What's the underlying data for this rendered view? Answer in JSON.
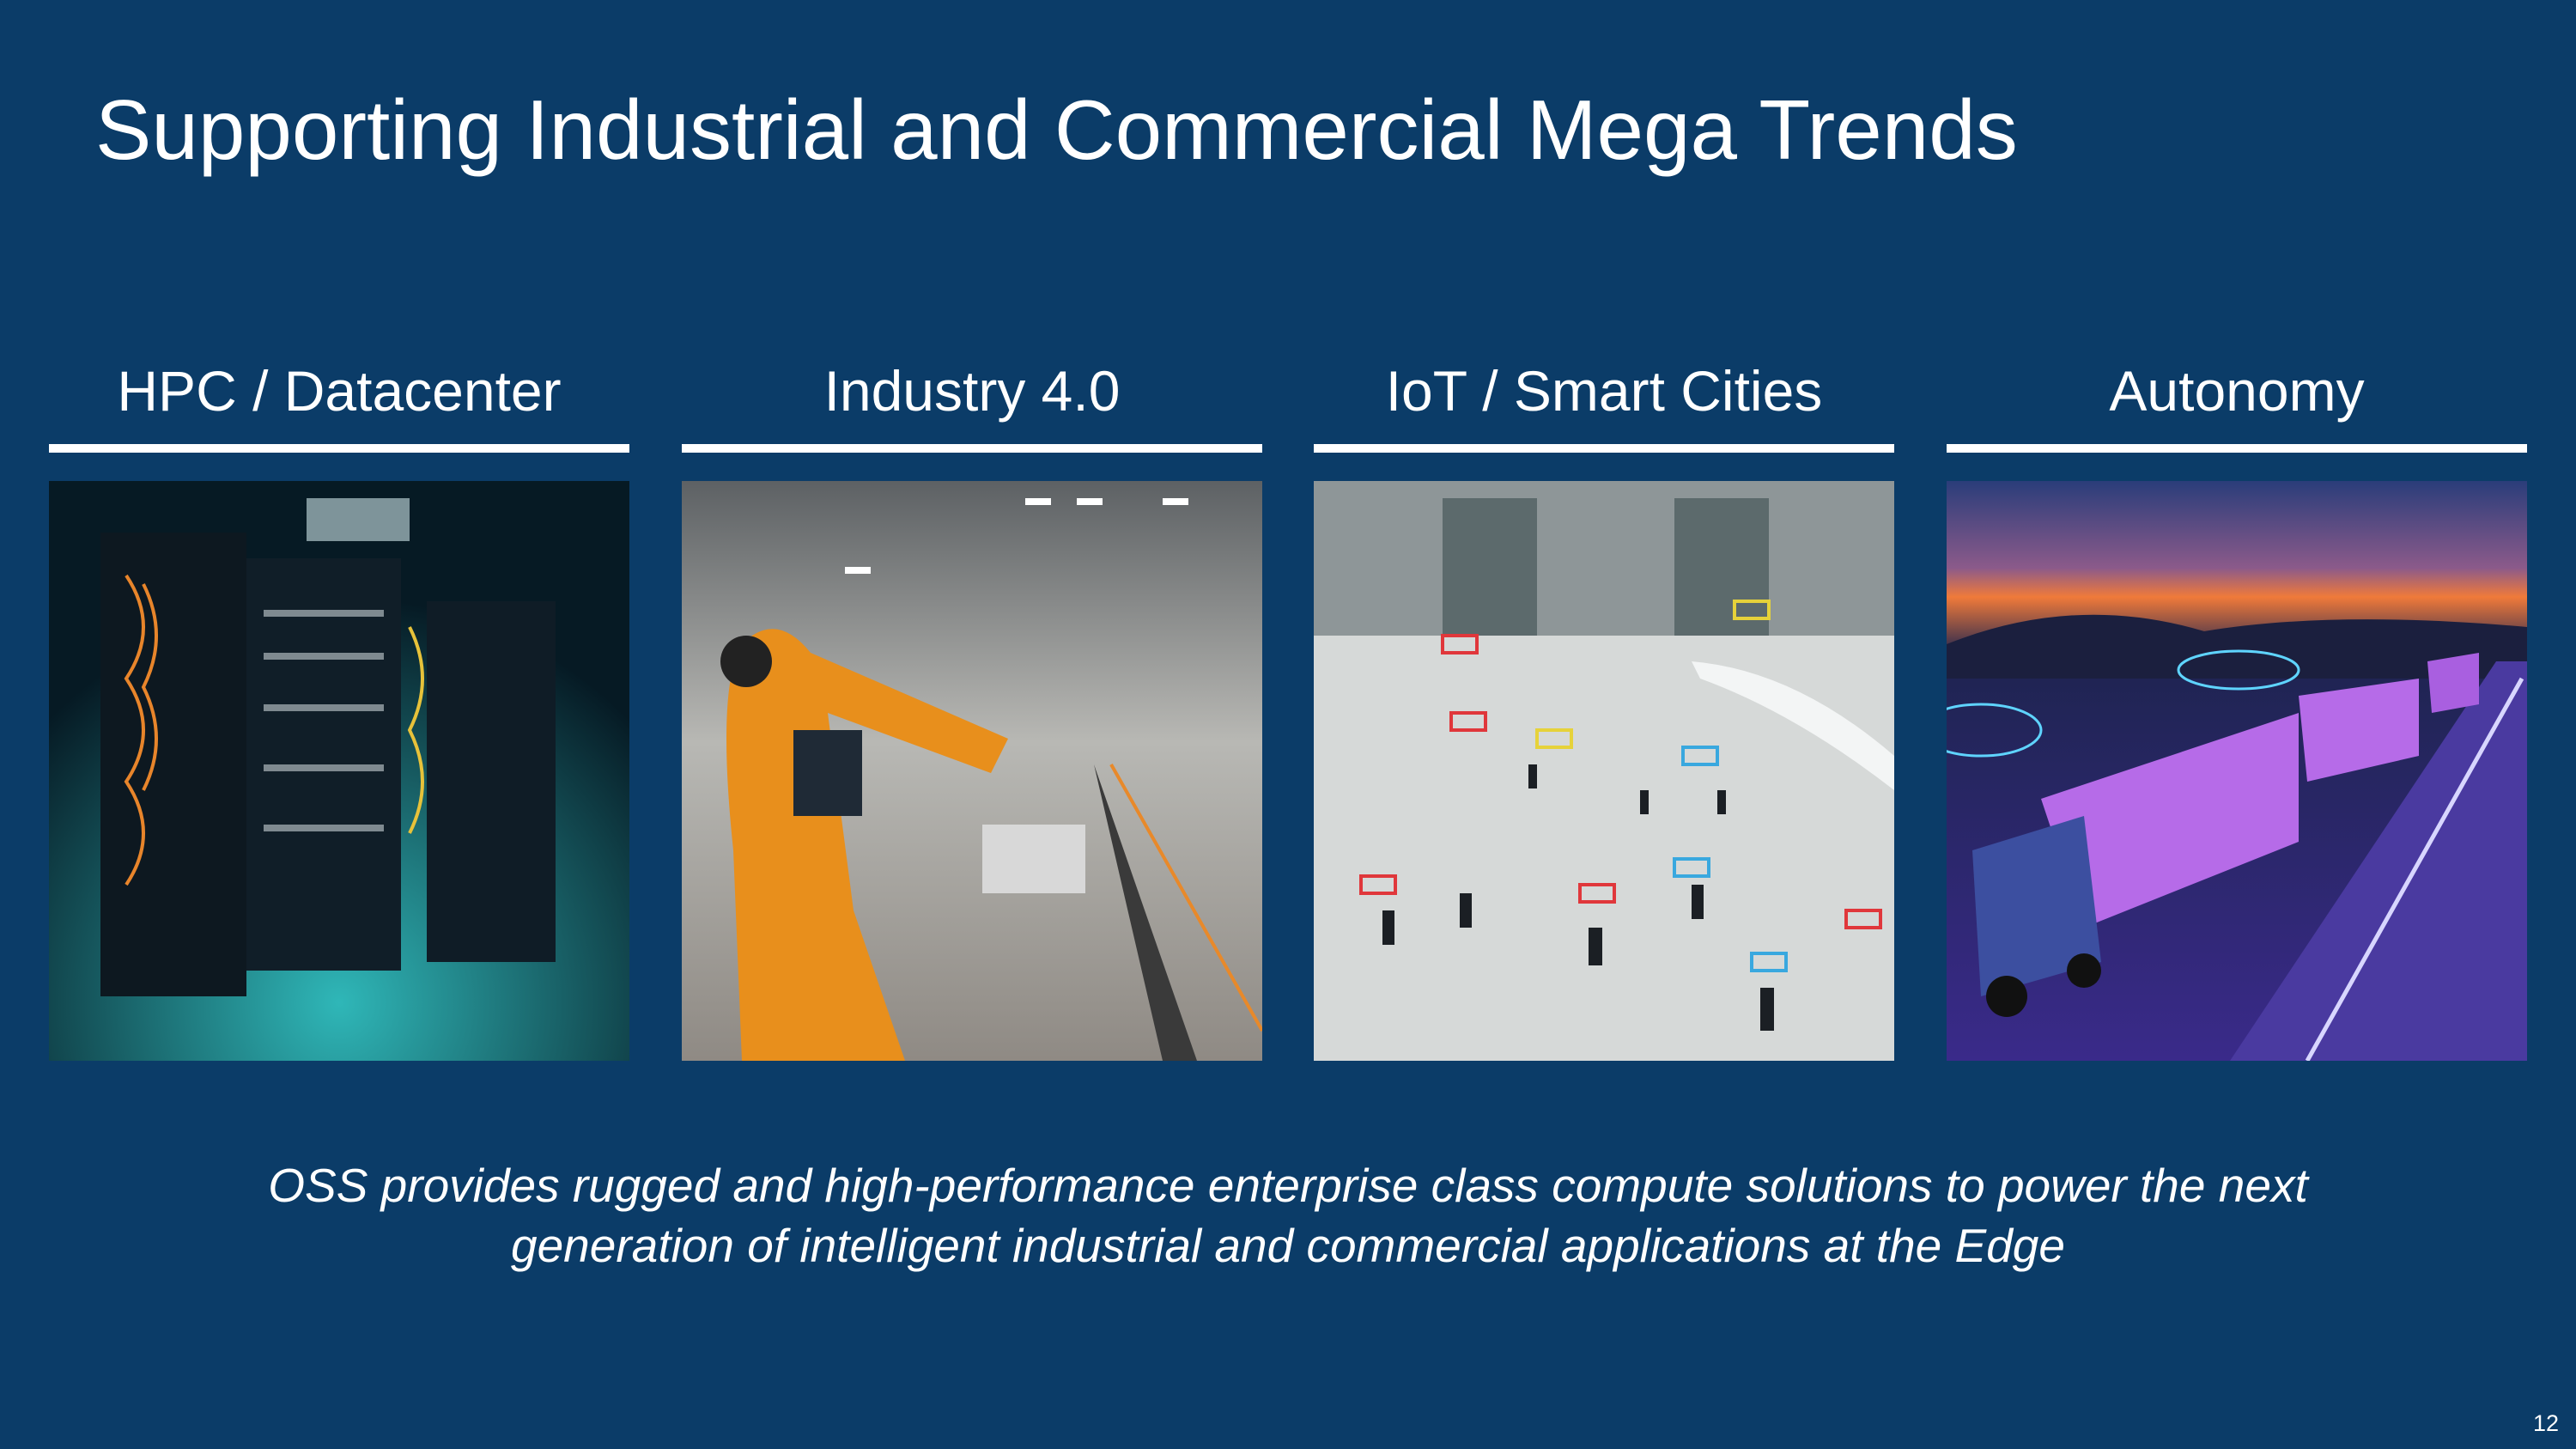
{
  "slide": {
    "title": "Supporting Industrial and Commercial Mega Trends",
    "columns": [
      {
        "heading": "HPC / Datacenter",
        "image": "server-racks-photo"
      },
      {
        "heading": "Industry 4.0",
        "image": "robotic-arm-factory-photo"
      },
      {
        "heading": "IoT / Smart Cities",
        "image": "pedestrian-tracking-photo"
      },
      {
        "heading": "Autonomy",
        "image": "autonomous-trucks-drones-photo"
      }
    ],
    "caption_line1": "OSS provides rugged and high-performance enterprise class compute solutions to power the next",
    "caption_line2": "generation of intelligent industrial and commercial applications at the Edge",
    "page_number": "12"
  },
  "colors": {
    "background": "#0b3c68",
    "text": "#ffffff"
  }
}
